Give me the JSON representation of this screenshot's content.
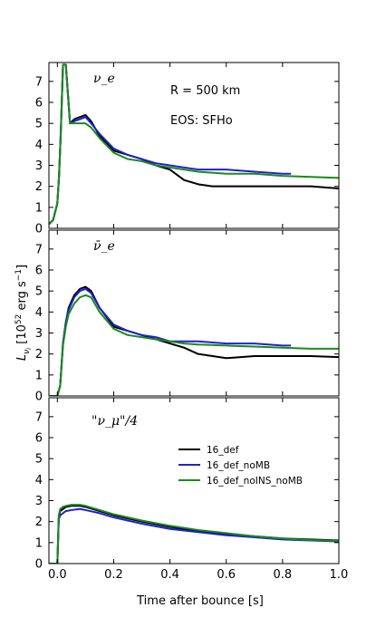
{
  "chart_data": {
    "type": "line",
    "xlabel": "Time after bounce [s]",
    "ylabel": "L_{ν_i} [10^{52} erg s^{-1}]",
    "xlim": [
      -0.03,
      1.0
    ],
    "ylim": [
      0,
      7.9
    ],
    "x_ticks": [
      "0.0",
      "0.2",
      "0.4",
      "0.6",
      "0.8",
      "1.0"
    ],
    "y_ticks": [
      "0",
      "1",
      "2",
      "3",
      "4",
      "5",
      "6",
      "7"
    ],
    "series_colors": {
      "16_def": "#000000",
      "16_def_noMB": "#1f1fd6",
      "16_def_noINS_noMB": "#1a8a1a"
    },
    "legend": {
      "placement": "center-right",
      "entries": [
        "16_def",
        "16_def_noMB",
        "16_def_noINS_noMB"
      ]
    },
    "annotations": [
      "R = 500 km",
      "EOS: SFHo"
    ],
    "panels": [
      {
        "label": "ν_e",
        "series": [
          {
            "name": "16_def",
            "x": [
              -0.03,
              -0.015,
              0.0,
              0.006,
              0.012,
              0.02,
              0.03,
              0.045,
              0.06,
              0.08,
              0.1,
              0.12,
              0.15,
              0.2,
              0.25,
              0.3,
              0.35,
              0.4,
              0.45,
              0.5,
              0.55,
              0.6,
              0.7,
              0.8,
              0.9,
              1.0
            ],
            "y": [
              0.2,
              0.4,
              1.2,
              2.5,
              4.5,
              7.8,
              7.8,
              5.0,
              5.2,
              5.3,
              5.4,
              5.1,
              4.4,
              3.7,
              3.5,
              3.3,
              3.0,
              2.8,
              2.3,
              2.1,
              2.0,
              2.0,
              2.0,
              2.0,
              2.0,
              1.9
            ]
          },
          {
            "name": "16_def_noMB",
            "x": [
              -0.03,
              -0.015,
              0.0,
              0.006,
              0.012,
              0.02,
              0.03,
              0.045,
              0.06,
              0.08,
              0.1,
              0.12,
              0.15,
              0.2,
              0.25,
              0.3,
              0.35,
              0.4,
              0.45,
              0.5,
              0.6,
              0.7,
              0.8,
              0.83
            ],
            "y": [
              0.2,
              0.4,
              1.2,
              2.5,
              4.5,
              7.8,
              7.8,
              5.0,
              5.1,
              5.2,
              5.3,
              5.0,
              4.5,
              3.8,
              3.5,
              3.3,
              3.1,
              3.0,
              2.9,
              2.8,
              2.8,
              2.7,
              2.6,
              2.6
            ]
          },
          {
            "name": "16_def_noINS_noMB",
            "x": [
              -0.03,
              -0.015,
              0.0,
              0.006,
              0.012,
              0.02,
              0.03,
              0.045,
              0.06,
              0.08,
              0.1,
              0.12,
              0.15,
              0.2,
              0.25,
              0.3,
              0.35,
              0.4,
              0.45,
              0.5,
              0.6,
              0.7,
              0.8,
              0.9,
              1.0
            ],
            "y": [
              0.2,
              0.4,
              1.2,
              2.5,
              4.5,
              7.8,
              7.8,
              5.0,
              5.0,
              5.0,
              5.0,
              4.8,
              4.3,
              3.6,
              3.3,
              3.2,
              3.0,
              2.9,
              2.8,
              2.7,
              2.6,
              2.6,
              2.5,
              2.45,
              2.4
            ]
          }
        ]
      },
      {
        "label": "ν̄_e",
        "series": [
          {
            "name": "16_def",
            "x": [
              -0.03,
              0.0,
              0.01,
              0.02,
              0.03,
              0.04,
              0.06,
              0.08,
              0.1,
              0.12,
              0.15,
              0.2,
              0.25,
              0.3,
              0.35,
              0.4,
              0.45,
              0.5,
              0.6,
              0.7,
              0.8,
              0.9,
              1.0
            ],
            "y": [
              0.0,
              0.0,
              0.5,
              2.5,
              3.5,
              4.2,
              4.8,
              5.1,
              5.2,
              5.0,
              4.2,
              3.3,
              3.1,
              2.9,
              2.7,
              2.5,
              2.3,
              2.0,
              1.8,
              1.9,
              1.9,
              1.9,
              1.85
            ]
          },
          {
            "name": "16_def_noMB",
            "x": [
              -0.03,
              0.0,
              0.01,
              0.02,
              0.03,
              0.04,
              0.06,
              0.08,
              0.1,
              0.12,
              0.15,
              0.2,
              0.25,
              0.3,
              0.35,
              0.4,
              0.45,
              0.5,
              0.6,
              0.7,
              0.8,
              0.83
            ],
            "y": [
              0.0,
              0.0,
              0.5,
              2.5,
              3.5,
              4.1,
              4.7,
              5.0,
              5.1,
              4.9,
              4.2,
              3.4,
              3.1,
              2.9,
              2.8,
              2.6,
              2.6,
              2.6,
              2.5,
              2.5,
              2.4,
              2.4
            ]
          },
          {
            "name": "16_def_noINS_noMB",
            "x": [
              -0.03,
              0.0,
              0.01,
              0.02,
              0.03,
              0.04,
              0.06,
              0.08,
              0.1,
              0.12,
              0.15,
              0.2,
              0.25,
              0.3,
              0.35,
              0.4,
              0.45,
              0.5,
              0.6,
              0.7,
              0.8,
              0.9,
              1.0
            ],
            "y": [
              0.0,
              0.0,
              0.5,
              2.4,
              3.3,
              3.9,
              4.4,
              4.7,
              4.8,
              4.7,
              4.0,
              3.2,
              2.9,
              2.8,
              2.7,
              2.6,
              2.5,
              2.45,
              2.4,
              2.35,
              2.3,
              2.25,
              2.25
            ]
          }
        ]
      },
      {
        "label": "\"ν_μ\"/4",
        "series": [
          {
            "name": "16_def",
            "x": [
              -0.03,
              0.0,
              0.005,
              0.01,
              0.02,
              0.03,
              0.05,
              0.08,
              0.1,
              0.15,
              0.2,
              0.3,
              0.4,
              0.5,
              0.6,
              0.7,
              0.8,
              0.9,
              1.0
            ],
            "y": [
              0.0,
              0.0,
              2.2,
              2.5,
              2.6,
              2.7,
              2.75,
              2.75,
              2.7,
              2.5,
              2.3,
              2.0,
              1.75,
              1.55,
              1.4,
              1.3,
              1.2,
              1.15,
              1.1
            ]
          },
          {
            "name": "16_def_noMB",
            "x": [
              -0.03,
              0.0,
              0.005,
              0.01,
              0.02,
              0.03,
              0.05,
              0.08,
              0.1,
              0.15,
              0.2,
              0.3,
              0.4,
              0.5,
              0.6,
              0.7,
              0.8,
              0.9,
              1.0
            ],
            "y": [
              0.0,
              0.0,
              2.1,
              2.3,
              2.4,
              2.5,
              2.55,
              2.6,
              2.55,
              2.4,
              2.2,
              1.9,
              1.65,
              1.5,
              1.35,
              1.25,
              1.15,
              1.1,
              1.05
            ]
          },
          {
            "name": "16_def_noINS_noMB",
            "x": [
              -0.03,
              0.0,
              0.005,
              0.01,
              0.02,
              0.03,
              0.05,
              0.08,
              0.1,
              0.15,
              0.2,
              0.3,
              0.4,
              0.5,
              0.6,
              0.7,
              0.8,
              0.9,
              1.0
            ],
            "y": [
              0.0,
              0.0,
              2.3,
              2.6,
              2.7,
              2.75,
              2.8,
              2.8,
              2.75,
              2.55,
              2.35,
              2.05,
              1.8,
              1.6,
              1.45,
              1.3,
              1.2,
              1.12,
              1.08
            ]
          }
        ]
      }
    ]
  }
}
